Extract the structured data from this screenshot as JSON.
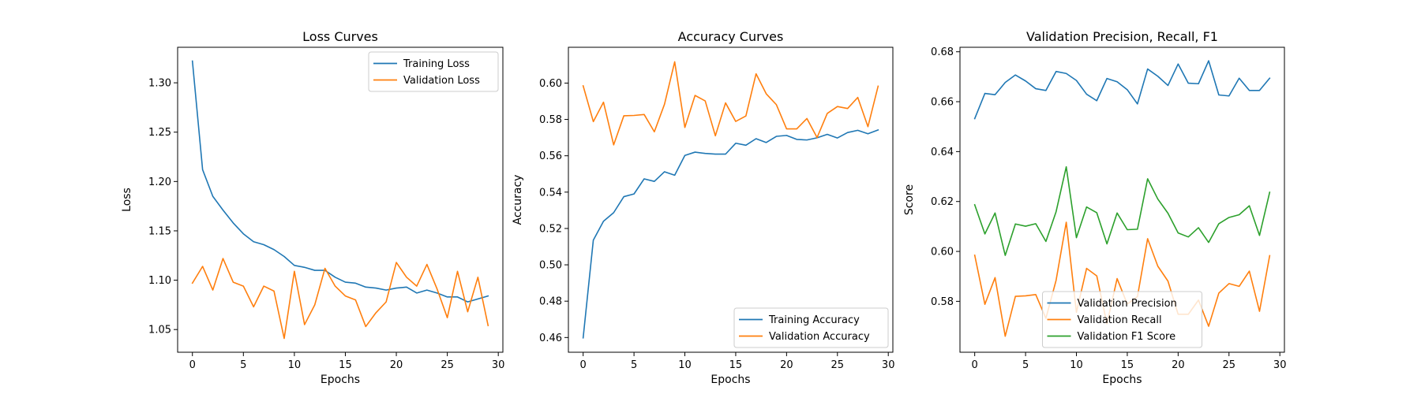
{
  "chart_data": [
    {
      "type": "line",
      "title": "Loss Curves",
      "xlabel": "Epochs",
      "ylabel": "Loss",
      "xlim": [
        -1.45,
        30.45
      ],
      "ylim": [
        1.027,
        1.336
      ],
      "xticks": [
        0,
        5,
        10,
        15,
        20,
        25,
        30
      ],
      "yticks": [
        1.05,
        1.1,
        1.15,
        1.2,
        1.25,
        1.3
      ],
      "ytick_labels": [
        "1.05",
        "1.10",
        "1.15",
        "1.20",
        "1.25",
        "1.30"
      ],
      "grid": false,
      "legend": "upper-right",
      "x": [
        0,
        1,
        2,
        3,
        4,
        5,
        6,
        7,
        8,
        9,
        10,
        11,
        12,
        13,
        14,
        15,
        16,
        17,
        18,
        19,
        20,
        21,
        22,
        23,
        24,
        25,
        26,
        27,
        28,
        29
      ],
      "series": [
        {
          "name": "Training Loss",
          "color": "#1f77b4",
          "values": [
            1.322,
            1.212,
            1.185,
            1.171,
            1.158,
            1.147,
            1.139,
            1.136,
            1.131,
            1.124,
            1.115,
            1.113,
            1.11,
            1.11,
            1.103,
            1.098,
            1.097,
            1.093,
            1.092,
            1.09,
            1.092,
            1.093,
            1.087,
            1.09,
            1.087,
            1.083,
            1.083,
            1.078,
            1.081,
            1.084
          ]
        },
        {
          "name": "Validation Loss",
          "color": "#ff7f0e",
          "values": [
            1.097,
            1.114,
            1.09,
            1.122,
            1.098,
            1.094,
            1.073,
            1.094,
            1.089,
            1.041,
            1.109,
            1.055,
            1.075,
            1.112,
            1.094,
            1.084,
            1.08,
            1.053,
            1.067,
            1.078,
            1.118,
            1.103,
            1.094,
            1.116,
            1.091,
            1.062,
            1.109,
            1.068,
            1.103,
            1.054
          ]
        }
      ]
    },
    {
      "type": "line",
      "title": "Accuracy Curves",
      "xlabel": "Epochs",
      "ylabel": "Accuracy",
      "xlim": [
        -1.45,
        30.45
      ],
      "ylim": [
        0.4519,
        0.6197
      ],
      "xticks": [
        0,
        5,
        10,
        15,
        20,
        25,
        30
      ],
      "yticks": [
        0.46,
        0.48,
        0.5,
        0.52,
        0.54,
        0.56,
        0.58,
        0.6
      ],
      "ytick_labels": [
        "0.46",
        "0.48",
        "0.50",
        "0.52",
        "0.54",
        "0.56",
        "0.58",
        "0.60"
      ],
      "grid": false,
      "legend": "lower-right",
      "x": [
        0,
        1,
        2,
        3,
        4,
        5,
        6,
        7,
        8,
        9,
        10,
        11,
        12,
        13,
        14,
        15,
        16,
        17,
        18,
        19,
        20,
        21,
        22,
        23,
        24,
        25,
        26,
        27,
        28,
        29
      ],
      "series": [
        {
          "name": "Training Accuracy",
          "color": "#1f77b4",
          "values": [
            0.4598,
            0.5136,
            0.524,
            0.5287,
            0.5375,
            0.539,
            0.5473,
            0.5459,
            0.5512,
            0.5493,
            0.5602,
            0.562,
            0.5613,
            0.5609,
            0.5609,
            0.5669,
            0.5658,
            0.5694,
            0.5673,
            0.5707,
            0.5712,
            0.569,
            0.5687,
            0.5699,
            0.5718,
            0.5698,
            0.5728,
            0.574,
            0.5721,
            0.5742
          ]
        },
        {
          "name": "Validation Accuracy",
          "color": "#ff7f0e",
          "values": [
            0.5985,
            0.5788,
            0.5895,
            0.566,
            0.582,
            0.5822,
            0.5827,
            0.5732,
            0.5884,
            0.6117,
            0.5756,
            0.5932,
            0.5902,
            0.571,
            0.5891,
            0.5789,
            0.5819,
            0.6051,
            0.5941,
            0.5881,
            0.5748,
            0.5748,
            0.5805,
            0.57,
            0.5833,
            0.5871,
            0.586,
            0.5921,
            0.576,
            0.5983
          ]
        }
      ]
    },
    {
      "type": "line",
      "title": "Validation Precision, Recall, F1",
      "xlabel": "Epochs",
      "ylabel": "Score",
      "xlim": [
        -1.45,
        30.45
      ],
      "ylim": [
        0.5596,
        0.6818
      ],
      "xticks": [
        0,
        5,
        10,
        15,
        20,
        25,
        30
      ],
      "yticks": [
        0.58,
        0.6,
        0.62,
        0.64,
        0.66,
        0.68
      ],
      "ytick_labels": [
        "0.58",
        "0.60",
        "0.62",
        "0.64",
        "0.66",
        "0.68"
      ],
      "grid": false,
      "legend": "lower-center",
      "x": [
        0,
        1,
        2,
        3,
        4,
        5,
        6,
        7,
        8,
        9,
        10,
        11,
        12,
        13,
        14,
        15,
        16,
        17,
        18,
        19,
        20,
        21,
        22,
        23,
        24,
        25,
        26,
        27,
        28,
        29
      ],
      "series": [
        {
          "name": "Validation Precision",
          "color": "#1f77b4",
          "values": [
            0.6532,
            0.6633,
            0.6628,
            0.6677,
            0.6707,
            0.6683,
            0.6652,
            0.6645,
            0.6721,
            0.6713,
            0.6685,
            0.663,
            0.6604,
            0.6693,
            0.668,
            0.6648,
            0.6591,
            0.6731,
            0.6702,
            0.6665,
            0.6751,
            0.6674,
            0.6672,
            0.6764,
            0.6627,
            0.6623,
            0.6694,
            0.6645,
            0.6645,
            0.6694
          ]
        },
        {
          "name": "Validation Recall",
          "color": "#ff7f0e",
          "values": [
            0.5985,
            0.5788,
            0.5895,
            0.566,
            0.582,
            0.5822,
            0.5827,
            0.5732,
            0.5884,
            0.6117,
            0.5756,
            0.5932,
            0.5902,
            0.571,
            0.5891,
            0.5789,
            0.5819,
            0.6051,
            0.5941,
            0.5881,
            0.5748,
            0.5748,
            0.5805,
            0.57,
            0.5833,
            0.5871,
            0.586,
            0.5921,
            0.576,
            0.5983
          ]
        },
        {
          "name": "Validation F1 Score",
          "color": "#2ca02c",
          "values": [
            0.6187,
            0.607,
            0.6154,
            0.5984,
            0.611,
            0.6101,
            0.6111,
            0.604,
            0.6159,
            0.6339,
            0.6055,
            0.6178,
            0.6155,
            0.603,
            0.6154,
            0.6087,
            0.6089,
            0.6291,
            0.621,
            0.6153,
            0.6074,
            0.6058,
            0.6095,
            0.6036,
            0.6111,
            0.6136,
            0.6147,
            0.6183,
            0.6064,
            0.6237
          ]
        }
      ]
    }
  ]
}
